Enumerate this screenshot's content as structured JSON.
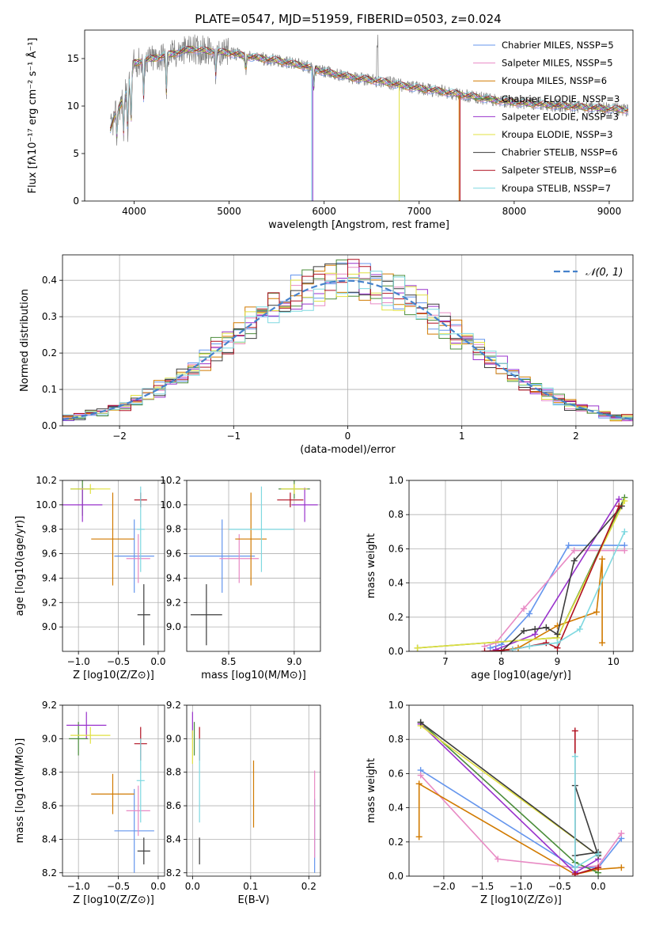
{
  "figure_title": "PLATE=0547, MJD=51959, FIBERID=0503, z=0.024",
  "series_colors": [
    "#6495ED",
    "#E88AC4",
    "#D17A00",
    "#4A8C3A",
    "#9932CC",
    "#E0E040",
    "#3C3C3C",
    "#B01020",
    "#7ED8E0"
  ],
  "chart_data": [
    {
      "type": "line",
      "panel": "spectrum",
      "xlabel": "wavelength [Angstrom, rest frame]",
      "ylabel": "Flux [fλ10⁻¹⁷ erg cm⁻² s⁻¹ Å⁻¹]",
      "xlim": [
        3480,
        9250
      ],
      "ylim": [
        0,
        18
      ],
      "xticks": [
        4000,
        5000,
        6000,
        7000,
        8000,
        9000
      ],
      "yticks": [
        0,
        5,
        10,
        15
      ],
      "legend": [
        "Chabrier MILES, NSSP=5",
        "Salpeter MILES, NSSP=5",
        "Kroupa MILES, NSSP=6",
        "Chabrier ELODIE, NSSP=3",
        "Salpeter ELODIE, NSSP=3",
        "Kroupa ELODIE, NSSP=3",
        "Chabrier STELIB, NSSP=6",
        "Salpeter STELIB, NSSP=6",
        "Kroupa STELIB, NSSP=7"
      ],
      "continuum": {
        "x": [
          3750,
          3800,
          3900,
          3950,
          4000,
          4100,
          4200,
          4400,
          4600,
          4800,
          5000,
          5200,
          5500,
          5800,
          6000,
          6300,
          6600,
          6900,
          7200,
          7500,
          7800,
          8100,
          8400,
          8700,
          9000,
          9200
        ],
        "y": [
          7.5,
          9.0,
          11.0,
          12.5,
          14.5,
          14.8,
          15.0,
          15.5,
          16.0,
          15.8,
          15.6,
          15.2,
          14.8,
          14.2,
          13.6,
          13.0,
          12.6,
          12.0,
          11.6,
          11.1,
          10.6,
          10.3,
          10.1,
          9.9,
          9.7,
          9.6
        ]
      }
    },
    {
      "type": "line",
      "panel": "residual-distribution",
      "xlabel": "(data-model)/error",
      "ylabel": "Normed distribution",
      "xlim": [
        -2.5,
        2.5
      ],
      "ylim": [
        0,
        0.47
      ],
      "xticks": [
        -2,
        -1,
        0,
        1,
        2
      ],
      "yticks": [
        0.0,
        0.1,
        0.2,
        0.3,
        0.4
      ],
      "legend": [
        "𝒩(0, 1)"
      ]
    },
    {
      "type": "scatter",
      "panel": "age-vs-Z",
      "xlabel": "Z [log10(Z/Z⊙)]",
      "ylabel": "age  [log10(age/yr)]",
      "xlim": [
        -1.2,
        0.08
      ],
      "ylim": [
        8.8,
        10.2
      ],
      "xticks": [
        -1.0,
        -0.5,
        0.0
      ],
      "yticks": [
        9.0,
        9.2,
        9.4,
        9.6,
        9.8,
        10.0,
        10.2
      ],
      "points": [
        {
          "series": 0,
          "x": -0.3,
          "y": 9.58,
          "xerr": 0.25,
          "yerr": 0.3
        },
        {
          "series": 1,
          "x": -0.25,
          "y": 9.56,
          "xerr": 0.15,
          "yerr": 0.2
        },
        {
          "series": 2,
          "x": -0.57,
          "y": 9.72,
          "xerr": 0.27,
          "yerr": 0.38
        },
        {
          "series": 3,
          "x": -0.95,
          "y": 10.13,
          "xerr": 0.15,
          "yerr": 0.22
        },
        {
          "series": 4,
          "x": -0.95,
          "y": 10.0,
          "xerr": 0.25,
          "yerr": 0.14
        },
        {
          "series": 5,
          "x": -0.85,
          "y": 10.13,
          "xerr": 0.25,
          "yerr": 0.04
        },
        {
          "series": 6,
          "x": -0.18,
          "y": 9.1,
          "xerr": 0.08,
          "yerr": 0.25
        },
        {
          "series": 7,
          "x": -0.22,
          "y": 10.04,
          "xerr": 0.08,
          "yerr": 0.06
        },
        {
          "series": 8,
          "x": -0.22,
          "y": 9.8,
          "xerr": 0.05,
          "yerr": 0.35
        }
      ]
    },
    {
      "type": "scatter",
      "panel": "age-vs-mass",
      "xlabel": "mass [log10(M/M⊙)]",
      "ylabel": "",
      "xlim": [
        8.18,
        9.2
      ],
      "ylim": [
        8.8,
        10.2
      ],
      "xticks": [
        8.5,
        9.0
      ],
      "yticks": [
        9.0,
        9.2,
        9.4,
        9.6,
        9.8,
        10.0,
        10.2
      ],
      "points": [
        {
          "series": 0,
          "x": 8.45,
          "y": 9.58,
          "xerr": 0.25,
          "yerr": 0.3
        },
        {
          "series": 1,
          "x": 8.58,
          "y": 9.56,
          "xerr": 0.15,
          "yerr": 0.2
        },
        {
          "series": 2,
          "x": 8.67,
          "y": 9.72,
          "xerr": 0.12,
          "yerr": 0.38
        },
        {
          "series": 3,
          "x": 9.0,
          "y": 10.13,
          "xerr": 0.12,
          "yerr": 0.08
        },
        {
          "series": 4,
          "x": 9.08,
          "y": 10.0,
          "xerr": 0.1,
          "yerr": 0.14
        },
        {
          "series": 5,
          "x": 9.0,
          "y": 10.13,
          "xerr": 0.1,
          "yerr": 0.04
        },
        {
          "series": 6,
          "x": 8.33,
          "y": 9.1,
          "xerr": 0.12,
          "yerr": 0.25
        },
        {
          "series": 7,
          "x": 8.97,
          "y": 10.04,
          "xerr": 0.1,
          "yerr": 0.06
        },
        {
          "series": 8,
          "x": 8.75,
          "y": 9.8,
          "xerr": 0.25,
          "yerr": 0.35
        }
      ]
    },
    {
      "type": "line",
      "panel": "mass-weight-vs-age",
      "xlabel": "age  [log10(age/yr)]",
      "ylabel": "mass weight",
      "xlim": [
        6.35,
        10.35
      ],
      "ylim": [
        0.0,
        1.0
      ],
      "xticks": [
        7,
        8,
        9,
        10
      ],
      "yticks": [
        0.0,
        0.2,
        0.4,
        0.6,
        0.8,
        1.0
      ],
      "series": [
        {
          "x": [
            7.8,
            8.0,
            8.5,
            9.2,
            10.2
          ],
          "y": [
            0.02,
            0.04,
            0.22,
            0.62,
            0.62
          ]
        },
        {
          "x": [
            7.7,
            7.9,
            8.4,
            9.3,
            10.2
          ],
          "y": [
            0.03,
            0.05,
            0.25,
            0.59,
            0.59
          ]
        },
        {
          "x": [
            7.9,
            8.3,
            9.0,
            9.7,
            9.8,
            9.8
          ],
          "y": [
            0.0,
            0.02,
            0.15,
            0.23,
            0.54,
            0.05
          ]
        },
        {
          "x": [
            6.5,
            9.0,
            10.2
          ],
          "y": [
            0.02,
            0.08,
            0.9
          ]
        },
        {
          "x": [
            7.9,
            8.6,
            10.1
          ],
          "y": [
            0.01,
            0.1,
            0.89
          ]
        },
        {
          "x": [
            6.5,
            9.0,
            10.2
          ],
          "y": [
            0.02,
            0.08,
            0.88
          ]
        },
        {
          "x": [
            8.0,
            8.4,
            8.6,
            8.8,
            9.0,
            9.3,
            10.15
          ],
          "y": [
            0.0,
            0.12,
            0.13,
            0.14,
            0.1,
            0.53,
            0.85
          ]
        },
        {
          "x": [
            7.7,
            8.2,
            8.8,
            9.0,
            10.1
          ],
          "y": [
            0.0,
            0.01,
            0.05,
            0.02,
            0.85
          ]
        },
        {
          "x": [
            8.2,
            8.5,
            9.0,
            9.4,
            10.2
          ],
          "y": [
            0.01,
            0.03,
            0.05,
            0.13,
            0.7
          ]
        }
      ]
    },
    {
      "type": "scatter",
      "panel": "mass-vs-Z",
      "xlabel": "Z [log10(Z/Z⊙)]",
      "ylabel": "mass [log10(M/M⊙)]",
      "xlim": [
        -1.2,
        0.08
      ],
      "ylim": [
        8.18,
        9.2
      ],
      "xticks": [
        -1.0,
        -0.5,
        0.0
      ],
      "yticks": [
        8.2,
        8.4,
        8.6,
        8.8,
        9.0,
        9.2
      ],
      "points": [
        {
          "series": 0,
          "x": -0.3,
          "y": 8.45,
          "xerr": 0.25,
          "yerr": 0.25
        },
        {
          "series": 1,
          "x": -0.25,
          "y": 8.57,
          "xerr": 0.15,
          "yerr": 0.15
        },
        {
          "series": 2,
          "x": -0.57,
          "y": 8.67,
          "xerr": 0.27,
          "yerr": 0.12
        },
        {
          "series": 3,
          "x": -1.0,
          "y": 9.0,
          "xerr": 0.12,
          "yerr": 0.1
        },
        {
          "series": 4,
          "x": -0.9,
          "y": 9.08,
          "xerr": 0.25,
          "yerr": 0.08
        },
        {
          "series": 5,
          "x": -0.85,
          "y": 9.02,
          "xerr": 0.25,
          "yerr": 0.05
        },
        {
          "series": 6,
          "x": -0.18,
          "y": 8.33,
          "xerr": 0.08,
          "yerr": 0.08
        },
        {
          "series": 7,
          "x": -0.22,
          "y": 8.97,
          "xerr": 0.08,
          "yerr": 0.1
        },
        {
          "series": 8,
          "x": -0.22,
          "y": 8.75,
          "xerr": 0.05,
          "yerr": 0.25
        }
      ]
    },
    {
      "type": "scatter",
      "panel": "mass-vs-EBV",
      "xlabel": "E(B-V)",
      "ylabel": "",
      "xlim": [
        -0.01,
        0.22
      ],
      "ylim": [
        8.18,
        9.2
      ],
      "xticks": [
        0.0,
        0.1,
        0.2
      ],
      "yticks": [
        8.2,
        8.4,
        8.6,
        8.8,
        9.0,
        9.2
      ],
      "points": [
        {
          "series": 0,
          "x": 0.21,
          "y": 8.42,
          "xerr": 0,
          "yerr": 0.22
        },
        {
          "series": 1,
          "x": 0.21,
          "y": 8.55,
          "xerr": 0,
          "yerr": 0.26
        },
        {
          "series": 2,
          "x": 0.105,
          "y": 8.67,
          "xerr": 0,
          "yerr": 0.2
        },
        {
          "series": 3,
          "x": 0.003,
          "y": 9.0,
          "xerr": 0,
          "yerr": 0.1
        },
        {
          "series": 4,
          "x": 0.0,
          "y": 9.08,
          "xerr": 0,
          "yerr": 0.08
        },
        {
          "series": 5,
          "x": 0.0,
          "y": 8.95,
          "xerr": 0,
          "yerr": 0.1
        },
        {
          "series": 6,
          "x": 0.012,
          "y": 8.33,
          "xerr": 0,
          "yerr": 0.08
        },
        {
          "series": 7,
          "x": 0.012,
          "y": 8.97,
          "xerr": 0,
          "yerr": 0.1
        },
        {
          "series": 8,
          "x": 0.012,
          "y": 8.75,
          "xerr": 0,
          "yerr": 0.25
        }
      ]
    },
    {
      "type": "line",
      "panel": "mass-weight-vs-Z",
      "xlabel": "Z [log10(Z/Z⊙)]",
      "ylabel": "mass weight",
      "xlim": [
        -2.45,
        0.45
      ],
      "ylim": [
        0.0,
        1.0
      ],
      "xticks": [
        -2.0,
        -1.5,
        -1.0,
        -0.5,
        0.0
      ],
      "yticks": [
        0.0,
        0.2,
        0.4,
        0.6,
        0.8,
        1.0
      ],
      "series": [
        {
          "x": [
            -2.3,
            -0.3,
            0.0,
            0.3
          ],
          "y": [
            0.62,
            0.05,
            0.05,
            0.22
          ]
        },
        {
          "x": [
            -2.3,
            -1.3,
            -0.3,
            0.0,
            0.3
          ],
          "y": [
            0.59,
            0.1,
            0.05,
            0.06,
            0.25
          ]
        },
        {
          "x": [
            -2.32,
            -2.32,
            -0.3,
            0.0,
            0.3
          ],
          "y": [
            0.23,
            0.54,
            0.01,
            0.04,
            0.05
          ]
        },
        {
          "x": [
            -2.3,
            -0.3,
            0.0
          ],
          "y": [
            0.9,
            0.08,
            0.02
          ]
        },
        {
          "x": [
            -2.3,
            -0.3,
            0.0
          ],
          "y": [
            0.89,
            0.02,
            0.1
          ]
        },
        {
          "x": [
            -2.3,
            0.0
          ],
          "y": [
            0.88,
            0.12
          ]
        },
        {
          "x": [
            -2.3,
            0.0,
            -0.3,
            -0.3,
            0.0
          ],
          "y": [
            0.9,
            0.12,
            0.53,
            0.12,
            0.14
          ]
        },
        {
          "x": [
            -0.3,
            -0.3,
            0.0
          ],
          "y": [
            0.85,
            0.01,
            0.05
          ]
        },
        {
          "x": [
            -0.3,
            -0.3,
            0.0
          ],
          "y": [
            0.7,
            0.05,
            0.13
          ]
        }
      ]
    }
  ]
}
